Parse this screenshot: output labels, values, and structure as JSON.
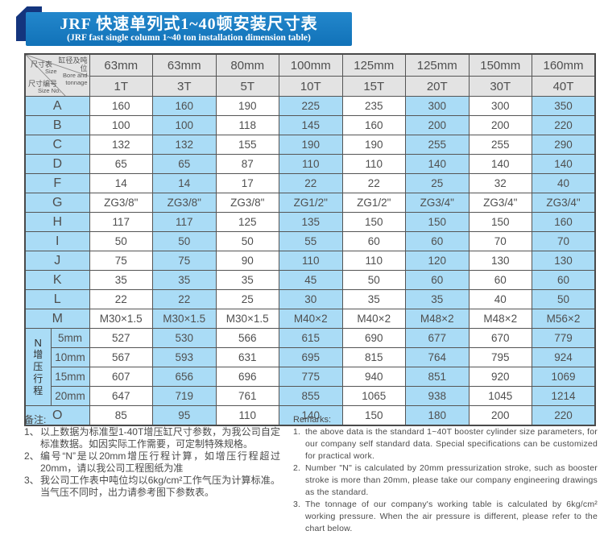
{
  "title": {
    "line1_zh": "JRF 快速单列式1~40顿安装尺寸表",
    "line2_en": "(JRF fast single column 1~40 ton installation dimension table)"
  },
  "table": {
    "corner": {
      "size_zh": "尺寸表",
      "size_en": "Size",
      "bore_zh": "缸径及吨位",
      "bore_en": "Bore and tonnage",
      "sizeno_zh": "尺寸编号",
      "sizeno_en": "Size No."
    },
    "columns": [
      {
        "bore": "63mm",
        "tonnage": "1T"
      },
      {
        "bore": "63mm",
        "tonnage": "3T"
      },
      {
        "bore": "80mm",
        "tonnage": "5T"
      },
      {
        "bore": "100mm",
        "tonnage": "10T"
      },
      {
        "bore": "125mm",
        "tonnage": "15T"
      },
      {
        "bore": "125mm",
        "tonnage": "20T"
      },
      {
        "bore": "150mm",
        "tonnage": "30T"
      },
      {
        "bore": "160mm",
        "tonnage": "40T"
      }
    ],
    "rows": [
      {
        "label": "A",
        "values": [
          "160",
          "160",
          "190",
          "225",
          "235",
          "300",
          "300",
          "350"
        ]
      },
      {
        "label": "B",
        "values": [
          "100",
          "100",
          "118",
          "145",
          "160",
          "200",
          "200",
          "220"
        ]
      },
      {
        "label": "C",
        "values": [
          "132",
          "132",
          "155",
          "190",
          "190",
          "255",
          "255",
          "290"
        ]
      },
      {
        "label": "D",
        "values": [
          "65",
          "65",
          "87",
          "110",
          "110",
          "140",
          "140",
          "140"
        ]
      },
      {
        "label": "F",
        "values": [
          "14",
          "14",
          "17",
          "22",
          "22",
          "25",
          "32",
          "40"
        ]
      },
      {
        "label": "G",
        "values": [
          "ZG3/8\"",
          "ZG3/8\"",
          "ZG3/8\"",
          "ZG1/2\"",
          "ZG1/2\"",
          "ZG3/4\"",
          "ZG3/4\"",
          "ZG3/4\""
        ]
      },
      {
        "label": "H",
        "values": [
          "117",
          "117",
          "125",
          "135",
          "150",
          "150",
          "150",
          "160"
        ]
      },
      {
        "label": "I",
        "values": [
          "50",
          "50",
          "50",
          "55",
          "60",
          "60",
          "70",
          "70"
        ]
      },
      {
        "label": "J",
        "values": [
          "75",
          "75",
          "90",
          "110",
          "110",
          "120",
          "130",
          "130"
        ]
      },
      {
        "label": "K",
        "values": [
          "35",
          "35",
          "35",
          "45",
          "50",
          "60",
          "60",
          "60"
        ]
      },
      {
        "label": "L",
        "values": [
          "22",
          "22",
          "25",
          "30",
          "35",
          "35",
          "40",
          "50"
        ]
      },
      {
        "label": "M",
        "values": [
          "M30×1.5",
          "M30×1.5",
          "M30×1.5",
          "M40×2",
          "M40×2",
          "M48×2",
          "M48×2",
          "M56×2"
        ]
      }
    ],
    "n_block": {
      "code": "N",
      "label_vertical": "增压行程",
      "rows": [
        {
          "label": "5mm",
          "values": [
            "527",
            "530",
            "566",
            "615",
            "690",
            "677",
            "670",
            "779"
          ]
        },
        {
          "label": "10mm",
          "values": [
            "567",
            "593",
            "631",
            "695",
            "815",
            "764",
            "795",
            "924"
          ]
        },
        {
          "label": "15mm",
          "values": [
            "607",
            "656",
            "696",
            "775",
            "940",
            "851",
            "920",
            "1069"
          ]
        },
        {
          "label": "20mm",
          "values": [
            "647",
            "719",
            "761",
            "855",
            "1065",
            "938",
            "1045",
            "1214"
          ]
        }
      ]
    },
    "o_row": {
      "label": "O",
      "values": [
        "85",
        "95",
        "110",
        "140",
        "150",
        "180",
        "200",
        "220"
      ]
    }
  },
  "notes_zh": {
    "heading": "备注:",
    "items": [
      {
        "marker": "1、",
        "text": "以上数据为标准型1-40T增压缸尺寸参数，为我公司自定标准数据。如因实际工作需要，可定制特殊规格。"
      },
      {
        "marker": "2、",
        "text": "编号“N”是以20mm增压行程计算，如增压行程超过20mm，请以我公司工程图纸为准"
      },
      {
        "marker": "3、",
        "text": "我公司工作表中吨位均以6kg/cm²工作气压为计算标准。当气压不同时，出力请参考图下参数表。"
      }
    ]
  },
  "notes_en": {
    "heading": "Remarks:",
    "items": [
      {
        "marker": "1.",
        "text": "the above data is the standard 1~40T booster cylinder size parameters, for our company self standard data. Special specifications can be customized for practical work."
      },
      {
        "marker": "2.",
        "text": "Number \"N\" is calculated by 20mm pressurization stroke, such as booster stroke is more than 20mm, please take our company engineering drawings as the standard."
      },
      {
        "marker": "3.",
        "text": "The tonnage of our company's working table is calculated by 6kg/cm² working pressure. When the air pressure is different, please refer to the chart below."
      }
    ]
  },
  "colors": {
    "banner_blue": "#1578bf",
    "banner_dark_navy": "#14357e",
    "cell_blue": "#aadcf6",
    "header_gray": "#e3e3e3",
    "border": "#555555",
    "text": "#4f4f4f"
  }
}
